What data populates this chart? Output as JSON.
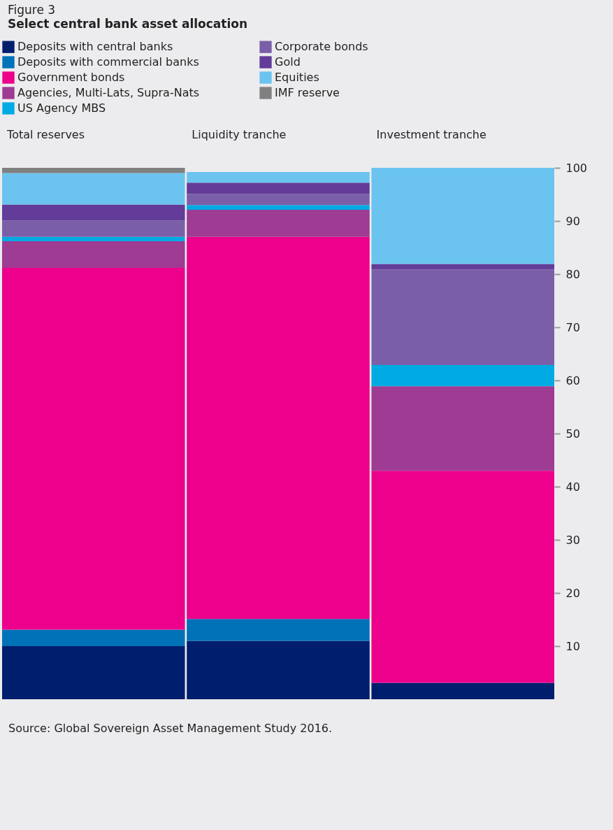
{
  "chart_data": {
    "type": "bar",
    "stacked": true,
    "title": "Figure 3",
    "subtitle": "Select central bank asset allocation",
    "categories": [
      "Total reserves",
      "Liquidity tranche",
      "Investment tranche"
    ],
    "series": [
      {
        "name": "Deposits with central banks",
        "color": "#001e6e",
        "values": [
          10.0,
          11.0,
          3.1
        ]
      },
      {
        "name": "Deposits with commercial banks",
        "color": "#0072b8",
        "values": [
          3.1,
          4.1,
          0
        ]
      },
      {
        "name": "Government bonds",
        "color": "#ec008c",
        "values": [
          68.1,
          71.9,
          39.9
        ]
      },
      {
        "name": "Agencies, Multi-Lats, Supra-Nats",
        "color": "#9e3b92",
        "values": [
          5.0,
          5.1,
          15.9
        ]
      },
      {
        "name": "US Agency MBS",
        "color": "#00abe4",
        "values": [
          0.8,
          0.9,
          4.0
        ]
      },
      {
        "name": "Corporate bonds",
        "color": "#7a5fa8",
        "values": [
          3.1,
          2.1,
          18.0
        ]
      },
      {
        "name": "Gold",
        "color": "#623c98",
        "values": [
          3.0,
          2.1,
          1.0
        ]
      },
      {
        "name": "Equities",
        "color": "#6bc4ef",
        "values": [
          5.9,
          2.0,
          18.1
        ]
      },
      {
        "name": "IMF reserve",
        "color": "#808080",
        "values": [
          1.0,
          0,
          0
        ]
      }
    ],
    "ylim": [
      0,
      100
    ],
    "yticks": [
      10,
      20,
      30,
      40,
      50,
      60,
      70,
      80,
      90,
      100
    ],
    "legend": "top",
    "annotations": [
      "Source: Global Sovereign Asset Management Study 2016."
    ]
  }
}
